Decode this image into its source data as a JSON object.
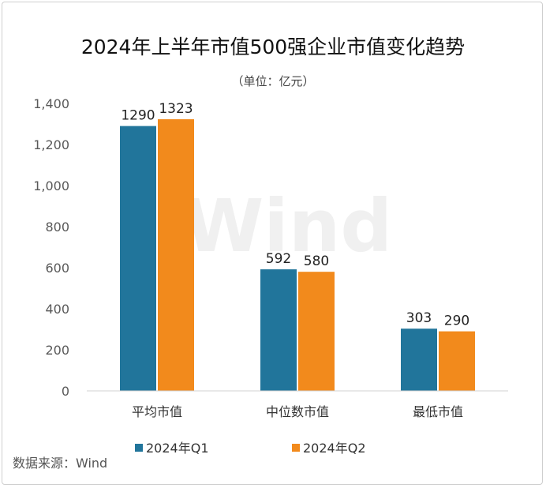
{
  "chart_data": {
    "type": "bar",
    "title": "2024年上半年市值500强企业市值变化趋势",
    "subtitle": "（单位：亿元）",
    "categories": [
      "平均市值",
      "中位数市值",
      "最低市值"
    ],
    "series": [
      {
        "name": "2024年Q1",
        "values": [
          1290,
          592,
          303
        ],
        "color": "#21759b"
      },
      {
        "name": "2024年Q2",
        "values": [
          1323,
          580,
          290
        ],
        "color": "#f28a1c"
      }
    ],
    "ylim": [
      0,
      1400
    ],
    "yticks": [
      "0",
      "200",
      "400",
      "600",
      "800",
      "1,000",
      "1,200",
      "1,400"
    ],
    "ytick_values": [
      0,
      200,
      400,
      600,
      800,
      1000,
      1200,
      1400
    ],
    "legend_position": "bottom",
    "grid": false,
    "source": "数据来源：Wind",
    "watermark": "Wind"
  }
}
